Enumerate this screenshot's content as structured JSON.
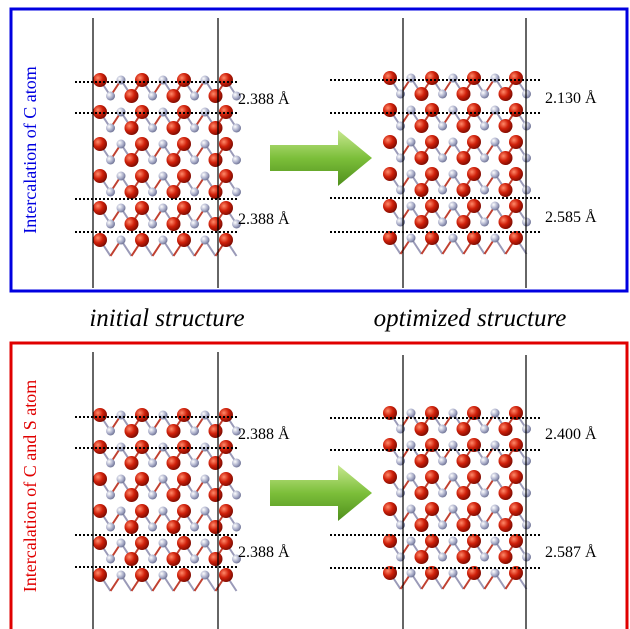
{
  "panels": [
    {
      "side_label": "Intercalation of C atom",
      "structures": [
        {
          "distances": [
            "2.388 Å",
            "2.388 Å"
          ]
        },
        {
          "distances": [
            "2.130 Å",
            "2.585 Å"
          ]
        }
      ]
    },
    {
      "side_label": "Intercalation of C and S atom",
      "structures": [
        {
          "distances": [
            "2.388 Å",
            "2.388 Å"
          ]
        },
        {
          "distances": [
            "2.400 Å",
            "2.587 Å"
          ]
        }
      ]
    }
  ],
  "captions": [
    "initial structure",
    "optimized structure"
  ]
}
